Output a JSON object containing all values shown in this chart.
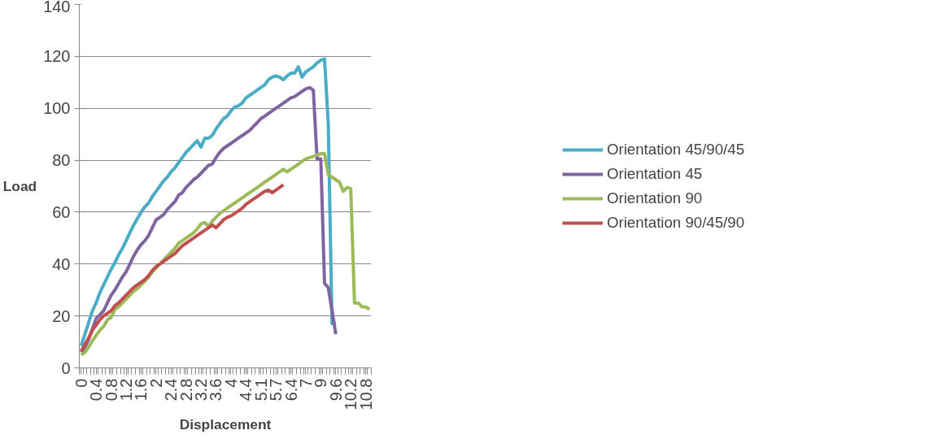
{
  "chart_data": {
    "type": "line",
    "xlabel": "Displacement",
    "ylabel": "Load",
    "categories": [
      "0",
      null,
      null,
      null,
      "0.4",
      null,
      null,
      null,
      "0.8",
      null,
      null,
      null,
      "1.2",
      null,
      null,
      null,
      "1.6",
      null,
      null,
      null,
      "2",
      null,
      null,
      null,
      "2.4",
      null,
      null,
      null,
      "2.8",
      null,
      null,
      null,
      "3.2",
      null,
      null,
      null,
      "3.6",
      null,
      null,
      null,
      "4",
      null,
      null,
      null,
      "4.4",
      null,
      null,
      null,
      "5.1",
      null,
      null,
      null,
      "5.7",
      null,
      null,
      null,
      "6.4",
      null,
      null,
      null,
      "7",
      null,
      null,
      null,
      "9",
      null,
      null,
      null,
      "9.6",
      null,
      null,
      null,
      "10.2",
      null,
      null,
      null,
      "10.8",
      null
    ],
    "ylim": [
      0,
      140
    ],
    "yticks": [
      0,
      20,
      40,
      60,
      80,
      100,
      120,
      140
    ],
    "grid": "y",
    "legend": "right",
    "marker": "none",
    "line_style": "solid",
    "series": [
      {
        "name": "Orientation 45/90/45",
        "color": "#4bacc6",
        "values": [
          8.5,
          13,
          17.5,
          22,
          25,
          29,
          32,
          35,
          38,
          40.5,
          43.5,
          46,
          49,
          52,
          55,
          57.5,
          60,
          62,
          63.5,
          66,
          68,
          70,
          72,
          73.5,
          75.5,
          77,
          79,
          81,
          83,
          84.5,
          86,
          87.5,
          85,
          88.5,
          88.5,
          89.5,
          92,
          94,
          96,
          97,
          99,
          100.5,
          101,
          102,
          104,
          105,
          106,
          107,
          108,
          109,
          111,
          112,
          112.5,
          112,
          111,
          112.5,
          113.5,
          113.5,
          116,
          112,
          114,
          115,
          116,
          117.5,
          118.5,
          119,
          94,
          17,
          17.5,
          null,
          null,
          null,
          null,
          null,
          null,
          null,
          null,
          null
        ]
      },
      {
        "name": "Orientation 45",
        "color": "#8064a2",
        "values": [
          6,
          8,
          11,
          15,
          19,
          20.5,
          22,
          25,
          28,
          30,
          32.5,
          35,
          37,
          40,
          43,
          45.5,
          47.5,
          49,
          51,
          54,
          57,
          58,
          59,
          61,
          62.5,
          64,
          66.5,
          67.5,
          69.5,
          71,
          72.5,
          73.5,
          75,
          76.5,
          78,
          78.5,
          81,
          83,
          84.5,
          85.5,
          86.5,
          87.5,
          88.5,
          89.5,
          90.5,
          91.5,
          93,
          94.5,
          96,
          97,
          98,
          99,
          100,
          101,
          102,
          103,
          104,
          104.5,
          105.5,
          106.5,
          107.5,
          108,
          107,
          80.5,
          80.5,
          32.5,
          31,
          22,
          13,
          null,
          null,
          null,
          null,
          null,
          null,
          null,
          null,
          null
        ]
      },
      {
        "name": "Orientation 90",
        "color": "#9bbb59",
        "values": [
          5,
          6,
          8,
          10.5,
          12.5,
          14.5,
          16,
          18.5,
          19.5,
          22.5,
          23.5,
          25,
          26.5,
          28,
          29.5,
          30.5,
          32,
          33.5,
          35,
          37,
          38.5,
          40,
          41.5,
          43,
          44.5,
          46,
          48,
          49,
          50,
          51,
          52,
          53.5,
          55.5,
          56,
          54.5,
          56.5,
          58,
          59.5,
          60.5,
          61.5,
          62.5,
          63.5,
          64.5,
          65.5,
          66.5,
          67.5,
          68.5,
          69.5,
          70.5,
          71.5,
          72.5,
          73.5,
          74.5,
          75.5,
          76.5,
          75.5,
          76.5,
          77.5,
          78.5,
          79.5,
          80.5,
          81,
          81.5,
          82,
          82.5,
          82.5,
          74.5,
          73.5,
          72.5,
          71.5,
          68,
          69.5,
          69,
          25,
          25,
          23.5,
          23.5,
          22.5
        ]
      },
      {
        "name": "Orientation 90/45/90",
        "color": "#c0504d",
        "values": [
          6.5,
          9,
          11.5,
          14.5,
          16.5,
          18.5,
          20,
          21,
          22,
          24,
          25,
          26.5,
          28,
          29.5,
          31,
          32,
          33,
          34,
          35.5,
          37.5,
          39,
          40,
          41,
          42,
          43,
          44,
          45.5,
          47,
          48,
          49,
          50,
          51,
          52,
          53,
          54,
          55,
          54,
          55.5,
          57,
          58,
          58.5,
          59.5,
          60.5,
          61.5,
          63,
          64,
          65,
          66,
          67,
          68,
          68.5,
          67.5,
          68.5,
          69.5,
          70.5,
          null,
          null,
          null,
          null,
          null,
          null,
          null,
          null,
          null,
          null,
          null,
          null,
          null,
          null,
          null,
          null,
          null,
          null,
          null,
          null,
          null,
          null,
          null
        ]
      }
    ]
  }
}
